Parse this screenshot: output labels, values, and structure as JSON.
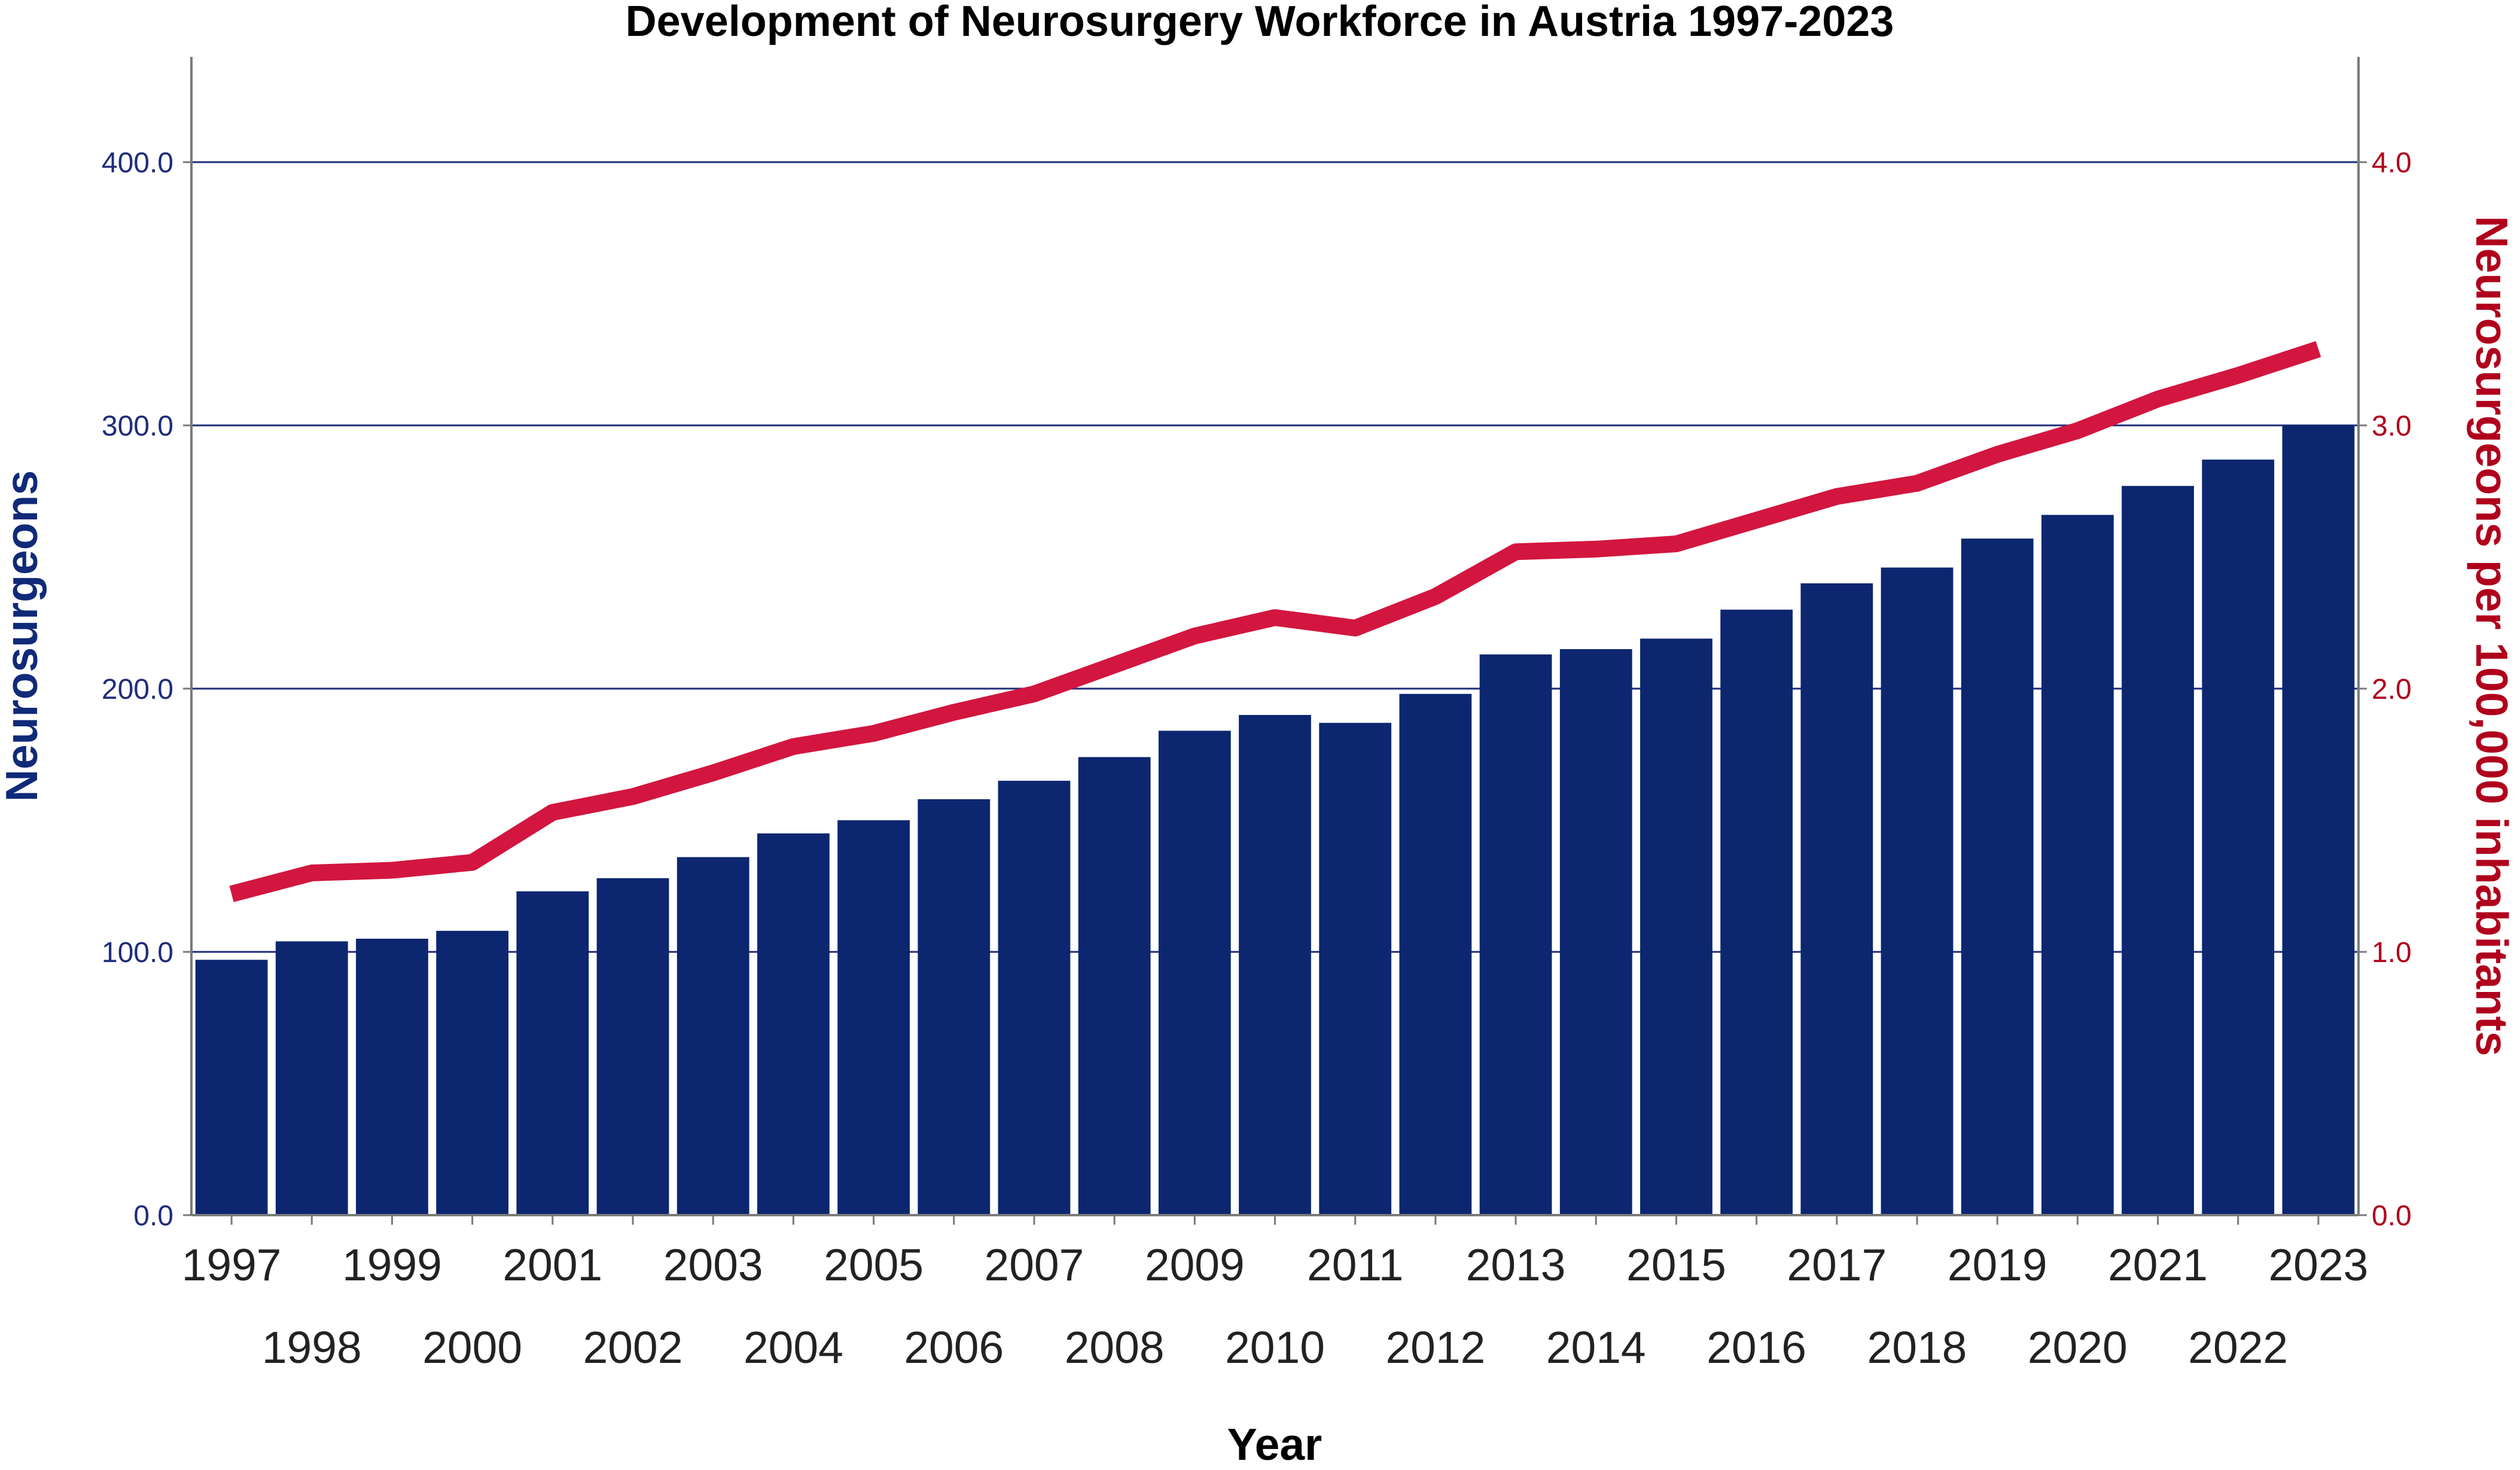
{
  "chart_data": {
    "type": "bar+line",
    "title": "Development of Neurosurgery Workforce in Austria 1997-2023",
    "xlabel": "Year",
    "ylabel_left": "Neurosurgeons",
    "ylabel_right": "Neurosurgeons per 100,000 inhabitants",
    "categories": [
      "1997",
      "1998",
      "1999",
      "2000",
      "2001",
      "2002",
      "2003",
      "2004",
      "2005",
      "2006",
      "2007",
      "2008",
      "2009",
      "2010",
      "2011",
      "2012",
      "2013",
      "2014",
      "2015",
      "2016",
      "2017",
      "2018",
      "2019",
      "2020",
      "2021",
      "2022",
      "2023"
    ],
    "series": [
      {
        "name": "Neurosurgeons",
        "type": "bar",
        "axis": "left",
        "color": "#0c2670",
        "values": [
          97,
          104,
          105,
          108,
          123,
          128,
          136,
          145,
          150,
          158,
          165,
          174,
          184,
          190,
          187,
          198,
          213,
          215,
          219,
          230,
          240,
          246,
          257,
          266,
          277,
          287,
          300
        ]
      },
      {
        "name": "Neurosurgeons per 100,000 inhabitants",
        "type": "line",
        "axis": "right",
        "color": "#d2163f",
        "values": [
          1.22,
          1.3,
          1.31,
          1.34,
          1.53,
          1.59,
          1.68,
          1.78,
          1.83,
          1.91,
          1.98,
          2.09,
          2.2,
          2.27,
          2.23,
          2.35,
          2.52,
          2.53,
          2.55,
          2.64,
          2.73,
          2.78,
          2.89,
          2.98,
          3.1,
          3.19,
          3.29
        ]
      }
    ],
    "ylim_left": [
      0,
      440
    ],
    "ylim_right": [
      0,
      4.4
    ],
    "yticks_left": [
      "0.0",
      "100.0",
      "200.0",
      "300.0",
      "400.0"
    ],
    "yticks_right": [
      "0.0",
      "1.0",
      "2.0",
      "3.0",
      "4.0"
    ],
    "gridlines": [
      100,
      200,
      300,
      400
    ],
    "grid_color": "#1f2d7a"
  }
}
